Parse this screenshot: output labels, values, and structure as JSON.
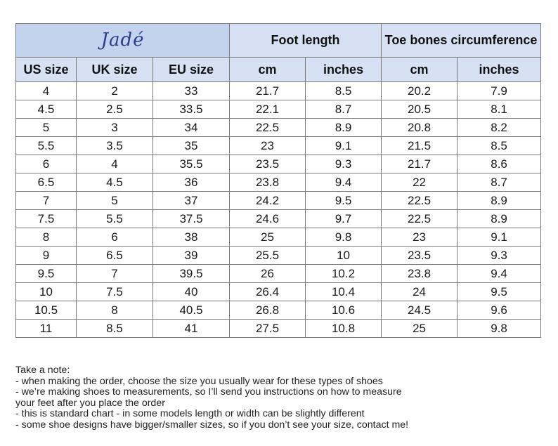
{
  "brand": "Jadé",
  "headers": {
    "foot_length": "Foot length",
    "toe_bones": "Toe bones circumference",
    "columns": [
      "US size",
      "UK size",
      "EU size",
      "cm",
      "inches",
      "cm",
      "inches"
    ]
  },
  "rows": [
    [
      "4",
      "2",
      "33",
      "21.7",
      "8.5",
      "20.2",
      "7.9"
    ],
    [
      "4.5",
      "2.5",
      "33.5",
      "22.1",
      "8.7",
      "20.5",
      "8.1"
    ],
    [
      "5",
      "3",
      "34",
      "22.5",
      "8.9",
      "20.8",
      "8.2"
    ],
    [
      "5.5",
      "3.5",
      "35",
      "23",
      "9.1",
      "21.5",
      "8.5"
    ],
    [
      "6",
      "4",
      "35.5",
      "23.5",
      "9.3",
      "21.7",
      "8.6"
    ],
    [
      "6.5",
      "4.5",
      "36",
      "23.8",
      "9.4",
      "22",
      "8.7"
    ],
    [
      "7",
      "5",
      "37",
      "24.2",
      "9.5",
      "22.5",
      "8.9"
    ],
    [
      "7.5",
      "5.5",
      "37.5",
      "24.6",
      "9.7",
      "22.5",
      "8.9"
    ],
    [
      "8",
      "6",
      "38",
      "25",
      "9.8",
      "23",
      "9.1"
    ],
    [
      "9",
      "6.5",
      "39",
      "25.5",
      "10",
      "23.5",
      "9.3"
    ],
    [
      "9.5",
      "7",
      "39.5",
      "26",
      "10.2",
      "23.8",
      "9.4"
    ],
    [
      "10",
      "7.5",
      "40",
      "26.4",
      "10.4",
      "24",
      "9.5"
    ],
    [
      "10.5",
      "8",
      "40.5",
      "26.8",
      "10.6",
      "24.5",
      "9.6"
    ],
    [
      "11",
      "8.5",
      "41",
      "27.5",
      "10.8",
      "25",
      "9.8"
    ]
  ],
  "notes": {
    "title": "Take a note:",
    "lines": [
      "- when making the order, choose the size you usually wear for these types of shoes",
      "- we’re making shoes to measurements, so I’ll send you instructions on how to measure",
      "your feet after you place the order",
      "- this is standard chart - in some models length or width can be slightly different",
      "- some shoe designs have bigger/smaller sizes, so if you don’t see your size, contact me!"
    ]
  },
  "colors": {
    "header_bg": "#d6e1f3",
    "brand_bg": "#c3d3ee",
    "border": "#7a7a7a",
    "brand_text": "#2a3d8f"
  }
}
